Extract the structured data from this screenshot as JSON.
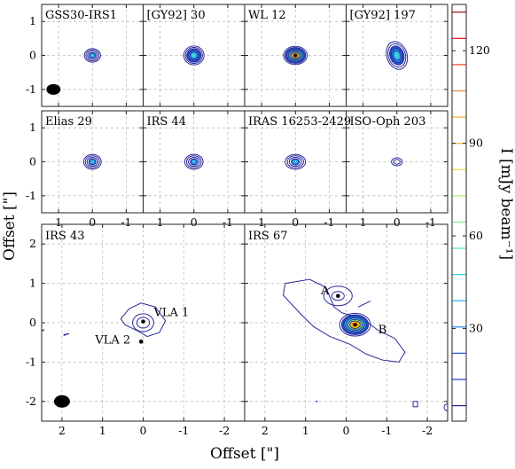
{
  "chart_data": [
    {
      "type": "contour",
      "xlabel": "Offset [\"]",
      "ylabel": "Offset [\"]",
      "colorbar": {
        "label": "I [mJy beam⁻¹]",
        "ticks": [
          30,
          60,
          90,
          120
        ],
        "range": [
          0,
          135
        ],
        "colormap": "jet"
      },
      "rows": [
        {
          "xlim": [
            1.5,
            -1.5
          ],
          "ylim": [
            -1.5,
            1.5
          ],
          "xticks": [
            "1",
            "0",
            "-1"
          ],
          "yticks": [
            "1",
            "0",
            "-1"
          ],
          "panels": [
            {
              "name": "GSS30-IRS1",
              "source": {
                "x": 0,
                "y": 0,
                "peak": 28,
                "rx": 0.24,
                "ry": 0.2,
                "tilt": 0
              },
              "beam": true
            },
            {
              "name": "[GY92] 30",
              "source": {
                "x": 0,
                "y": 0,
                "peak": 60,
                "rx": 0.3,
                "ry": 0.28,
                "tilt": 0
              }
            },
            {
              "name": "WL 12",
              "source": {
                "x": 0,
                "y": 0,
                "peak": 130,
                "rx": 0.35,
                "ry": 0.27,
                "tilt": 0
              }
            },
            {
              "name": "[GY92] 197",
              "source": {
                "x": 0,
                "y": 0,
                "peak": 55,
                "rx": 0.3,
                "ry": 0.42,
                "tilt": -18
              }
            }
          ]
        },
        {
          "xlim": [
            1.5,
            -1.5
          ],
          "ylim": [
            -1.5,
            1.5
          ],
          "xticks": [
            "1",
            "0",
            "-1"
          ],
          "yticks": [
            "1",
            "0",
            "-1"
          ],
          "panels": [
            {
              "name": "Elias 29",
              "source": {
                "x": 0,
                "y": 0,
                "peak": 25,
                "rx": 0.26,
                "ry": 0.22,
                "tilt": 0
              }
            },
            {
              "name": "IRS 44",
              "source": {
                "x": 0,
                "y": 0,
                "peak": 22,
                "rx": 0.27,
                "ry": 0.22,
                "tilt": 0
              }
            },
            {
              "name": "IRAS 16253-2429",
              "source": {
                "x": 0,
                "y": 0,
                "peak": 24,
                "rx": 0.3,
                "ry": 0.22,
                "tilt": 0
              }
            },
            {
              "name": "ISO-Oph 203",
              "source": {
                "x": 0,
                "y": 0,
                "peak": 10,
                "rx": 0.16,
                "ry": 0.12,
                "tilt": 0
              }
            }
          ]
        },
        {
          "xlim": [
            2.5,
            -2.5
          ],
          "ylim": [
            -2.5,
            2.5
          ],
          "xticks": [
            "2",
            "1",
            "0",
            "-1",
            "-2"
          ],
          "yticks": [
            "2",
            "1",
            "0",
            "-1",
            "-2"
          ],
          "panels": [
            {
              "name": "IRS 43",
              "source": {
                "x": 0,
                "y": 0,
                "peak": 18,
                "rx": 0.26,
                "ry": 0.22,
                "tilt": 0
              },
              "beam": true,
              "markers": [
                {
                  "label": "VLA 1",
                  "x": 0.0,
                  "y": 0.03
                },
                {
                  "label": "VLA 2",
                  "x": 0.05,
                  "y": -0.48
                }
              ]
            },
            {
              "name": "IRS 67",
              "source": {
                "x": -0.22,
                "y": -0.05,
                "peak": 135,
                "rx": 0.38,
                "ry": 0.28,
                "tilt": 0
              },
              "markers": [
                {
                  "label": "A",
                  "x": 0.2,
                  "y": 0.68
                },
                {
                  "label": "B",
                  "x": -0.22,
                  "y": -0.05
                }
              ]
            }
          ]
        }
      ]
    }
  ]
}
